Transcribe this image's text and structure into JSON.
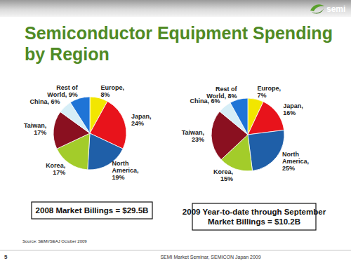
{
  "slide": {
    "title": "Semiconductor Equipment Spending\nby Region",
    "logo": "semi",
    "source": "Source: SEMI/SEAJ October 2009",
    "page_number": "5",
    "footer": "SEMI Market Seminar, SEMICON Japan 2009"
  },
  "chart_data": [
    {
      "type": "pie",
      "subtitle": "2008 Market Billings = $29.5B",
      "values": [
        8,
        24,
        19,
        17,
        17,
        6,
        9
      ],
      "value_labels": [
        "Europe,\n8%",
        "Japan,\n24%",
        "North\nAmerica,\n19%",
        "Korea,\n17%",
        "Taiwan,\n17%",
        "China, 6%",
        "Rest of\nWorld, 9%"
      ],
      "colors": [
        "#f2e600",
        "#e8131b",
        "#1f5fa8",
        "#a3cc2a",
        "#8a1020",
        "#d6eef7",
        "#1f74d6"
      ],
      "data_labels": true
    },
    {
      "type": "pie",
      "subtitle": "2009 Year-to-date through September\nMarket Billings = $10.2B",
      "values": [
        7,
        16,
        25,
        15,
        23,
        6,
        8
      ],
      "value_labels": [
        "Europe,\n7%",
        "Japan,\n16%",
        "North\nAmerica,\n25%",
        "Korea,\n15%",
        "Taiwan,\n23%",
        "China, 6%",
        "Rest of\nWorld, 8%"
      ],
      "colors": [
        "#f2e600",
        "#e8131b",
        "#1f5fa8",
        "#a3cc2a",
        "#8a1020",
        "#d6eef7",
        "#1f74d6"
      ],
      "data_labels": true
    }
  ]
}
